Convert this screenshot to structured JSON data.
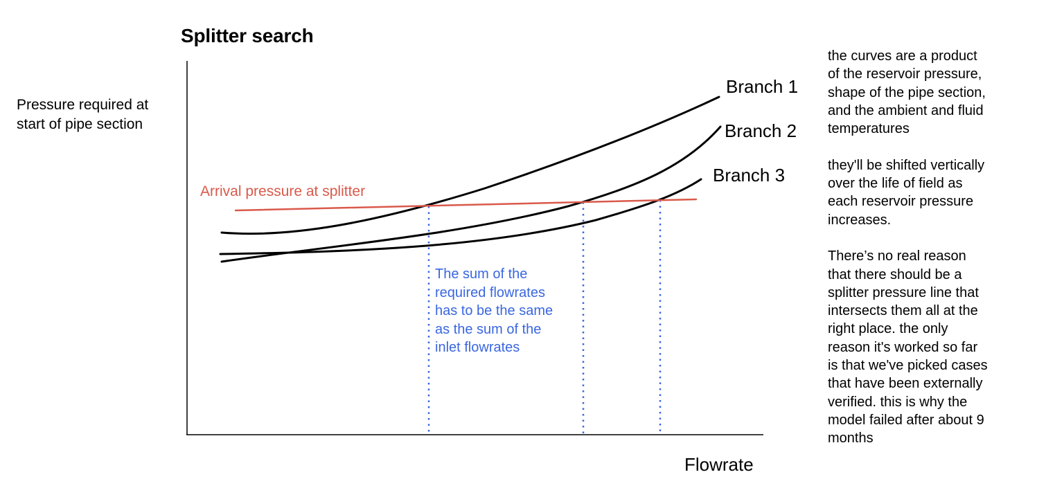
{
  "title": "Splitter search",
  "y_axis_label": [
    "Pressure required at",
    "start of pipe section"
  ],
  "x_axis_label": "Flowrate",
  "branches": [
    "Branch 1",
    "Branch 2",
    "Branch 3"
  ],
  "arrival_label": "Arrival pressure at splitter",
  "blue_note": [
    "The sum of the",
    "required flowrates",
    "has to be the same",
    "as the sum of the",
    "inlet flowrates"
  ],
  "side_notes": [
    [
      "the curves are a product",
      "of the reservoir pressure,",
      "shape of the pipe section,",
      "and the ambient and fluid",
      "temperatures"
    ],
    [
      "they'll be shifted vertically",
      "over the life of field as",
      "each reservoir pressure",
      "increases."
    ],
    [
      "There’s no real reason",
      "that there should be a",
      "splitter pressure line that",
      "intersects them all at the",
      "right place. the only",
      "reason it's worked so far",
      "is that we've picked cases",
      "that have been externally",
      "verified. this is why the",
      "model failed after about 9",
      "months"
    ]
  ],
  "colors": {
    "curve": "#000000",
    "arrival_line": "#d9594a",
    "dotted_lines": "#3a66e0",
    "blue_text": "#3a66e0",
    "axes": "#000000"
  }
}
